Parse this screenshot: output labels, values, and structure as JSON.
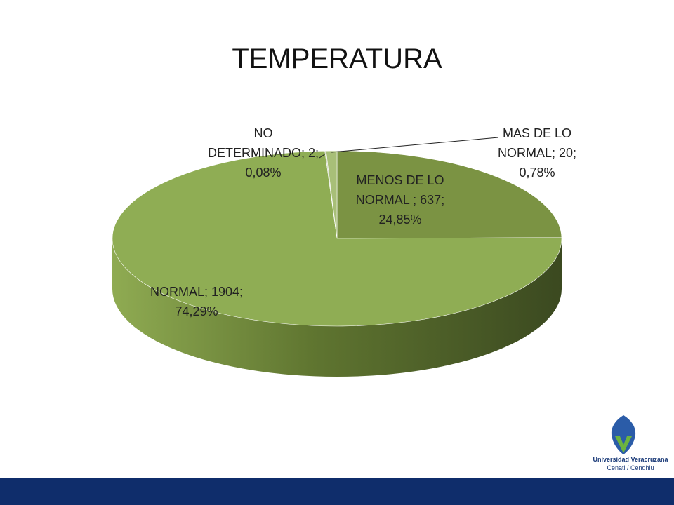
{
  "chart_data": {
    "type": "pie",
    "title": "TEMPERATURA",
    "categories": [
      "MENOS DE LO NORMAL ",
      "NORMAL",
      "NO DETERMINADO",
      "MAS DE LO NORMAL"
    ],
    "values": [
      637,
      1904,
      2,
      20
    ],
    "percent_labels": [
      "24,85%",
      "74,29%",
      "0,08%",
      "0,78%"
    ],
    "separator": "; ",
    "colors": [
      "#7b9343",
      "#8fad54",
      "#c3cab2",
      "#a8bf78"
    ]
  },
  "logo": {
    "line1": "Universidad Veracruzana",
    "line2": "Cenati / Cendhiu"
  }
}
